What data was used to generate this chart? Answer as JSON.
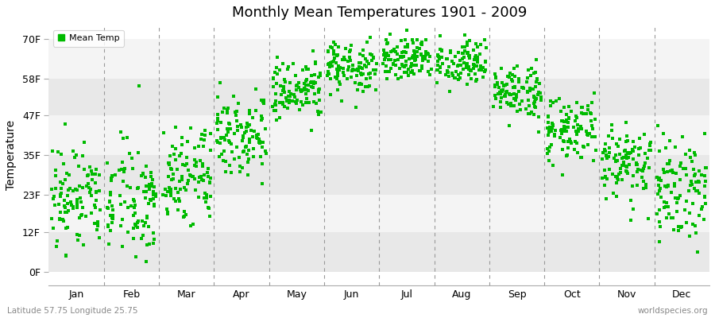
{
  "title": "Monthly Mean Temperatures 1901 - 2009",
  "ylabel": "Temperature",
  "subtitle_left": "Latitude 57.75 Longitude 25.75",
  "subtitle_right": "worldspecies.org",
  "legend_label": "Mean Temp",
  "dot_color": "#00bb00",
  "bg_color": "#ffffff",
  "plot_bg_color": "#ffffff",
  "stripe_colors": [
    "#e8e8e8",
    "#f4f4f4"
  ],
  "ytick_labels": [
    "0F",
    "12F",
    "23F",
    "35F",
    "47F",
    "58F",
    "70F"
  ],
  "ytick_values": [
    0,
    12,
    23,
    35,
    47,
    58,
    70
  ],
  "months": [
    "Jan",
    "Feb",
    "Mar",
    "Apr",
    "May",
    "Jun",
    "Jul",
    "Aug",
    "Sep",
    "Oct",
    "Nov",
    "Dec"
  ],
  "month_means_C": [
    -5.5,
    -6.0,
    -2.0,
    5.5,
    12.0,
    16.0,
    18.0,
    17.0,
    12.0,
    6.0,
    0.5,
    -3.5
  ],
  "month_stds_C": [
    5.0,
    5.0,
    3.8,
    3.2,
    2.8,
    2.2,
    1.8,
    1.8,
    2.2,
    2.8,
    3.2,
    4.2
  ],
  "n_years": 109,
  "xlim": [
    0,
    12
  ],
  "ylim": [
    -4,
    74
  ]
}
